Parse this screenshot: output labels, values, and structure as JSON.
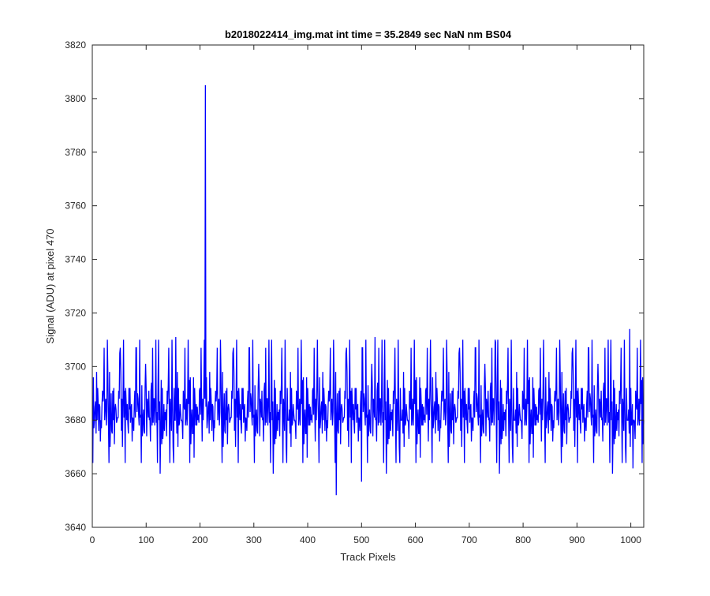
{
  "chart_data": {
    "type": "line",
    "title": "b2018022414_img.mat int time = 35.2849 sec  NaN nm BS04",
    "xlabel": "Track Pixels",
    "ylabel": "Signal (ADU) at pixel 470",
    "xlim": [
      0,
      1024
    ],
    "ylim": [
      3640,
      3820
    ],
    "xticks": [
      0,
      100,
      200,
      300,
      400,
      500,
      600,
      700,
      800,
      900,
      1000
    ],
    "yticks": [
      3640,
      3660,
      3680,
      3700,
      3720,
      3740,
      3760,
      3780,
      3800,
      3820
    ],
    "grid": false,
    "box": true,
    "series": [
      {
        "color": "#0000ff",
        "x_start": 1,
        "x_step": 1,
        "noise_mean": 3681,
        "noise_min": 3652,
        "noise_max": 3714,
        "values": [
          3693,
          3684,
          3677,
          3664,
          3681,
          3687,
          3676,
          3686,
          3680,
          3670,
          3707,
          3676,
          3680,
          3690,
          3672,
          3684,
          3678,
          3686,
          3670,
          3682,
          3691,
          3679,
          3674,
          3686,
          3680,
          3676,
          3683,
          3673,
          3701,
          3679,
          3684,
          3688,
          3670,
          3681,
          3691,
          3676,
          3686,
          3672,
          3680,
          3695,
          3678,
          3684,
          3671,
          3688,
          3679,
          3675,
          3686,
          3681,
          3666,
          3683,
          3705,
          3678,
          3710,
          3676,
          3685,
          3660,
          3688,
          3679,
          3671,
          3691,
          3682,
          3677,
          3686,
          3672,
          3683,
          3679,
          3692,
          3674,
          3684,
          3680
        ],
        "spikes": [
          {
            "x": 155,
            "y": 3711
          },
          {
            "x": 210,
            "y": 3805
          },
          {
            "x": 211,
            "y": 3685
          },
          {
            "x": 453,
            "y": 3652
          },
          {
            "x": 500,
            "y": 3657
          },
          {
            "x": 525,
            "y": 3711
          },
          {
            "x": 749,
            "y": 3709
          },
          {
            "x": 998,
            "y": 3714
          },
          {
            "x": 1004,
            "y": 3662
          }
        ]
      }
    ]
  }
}
